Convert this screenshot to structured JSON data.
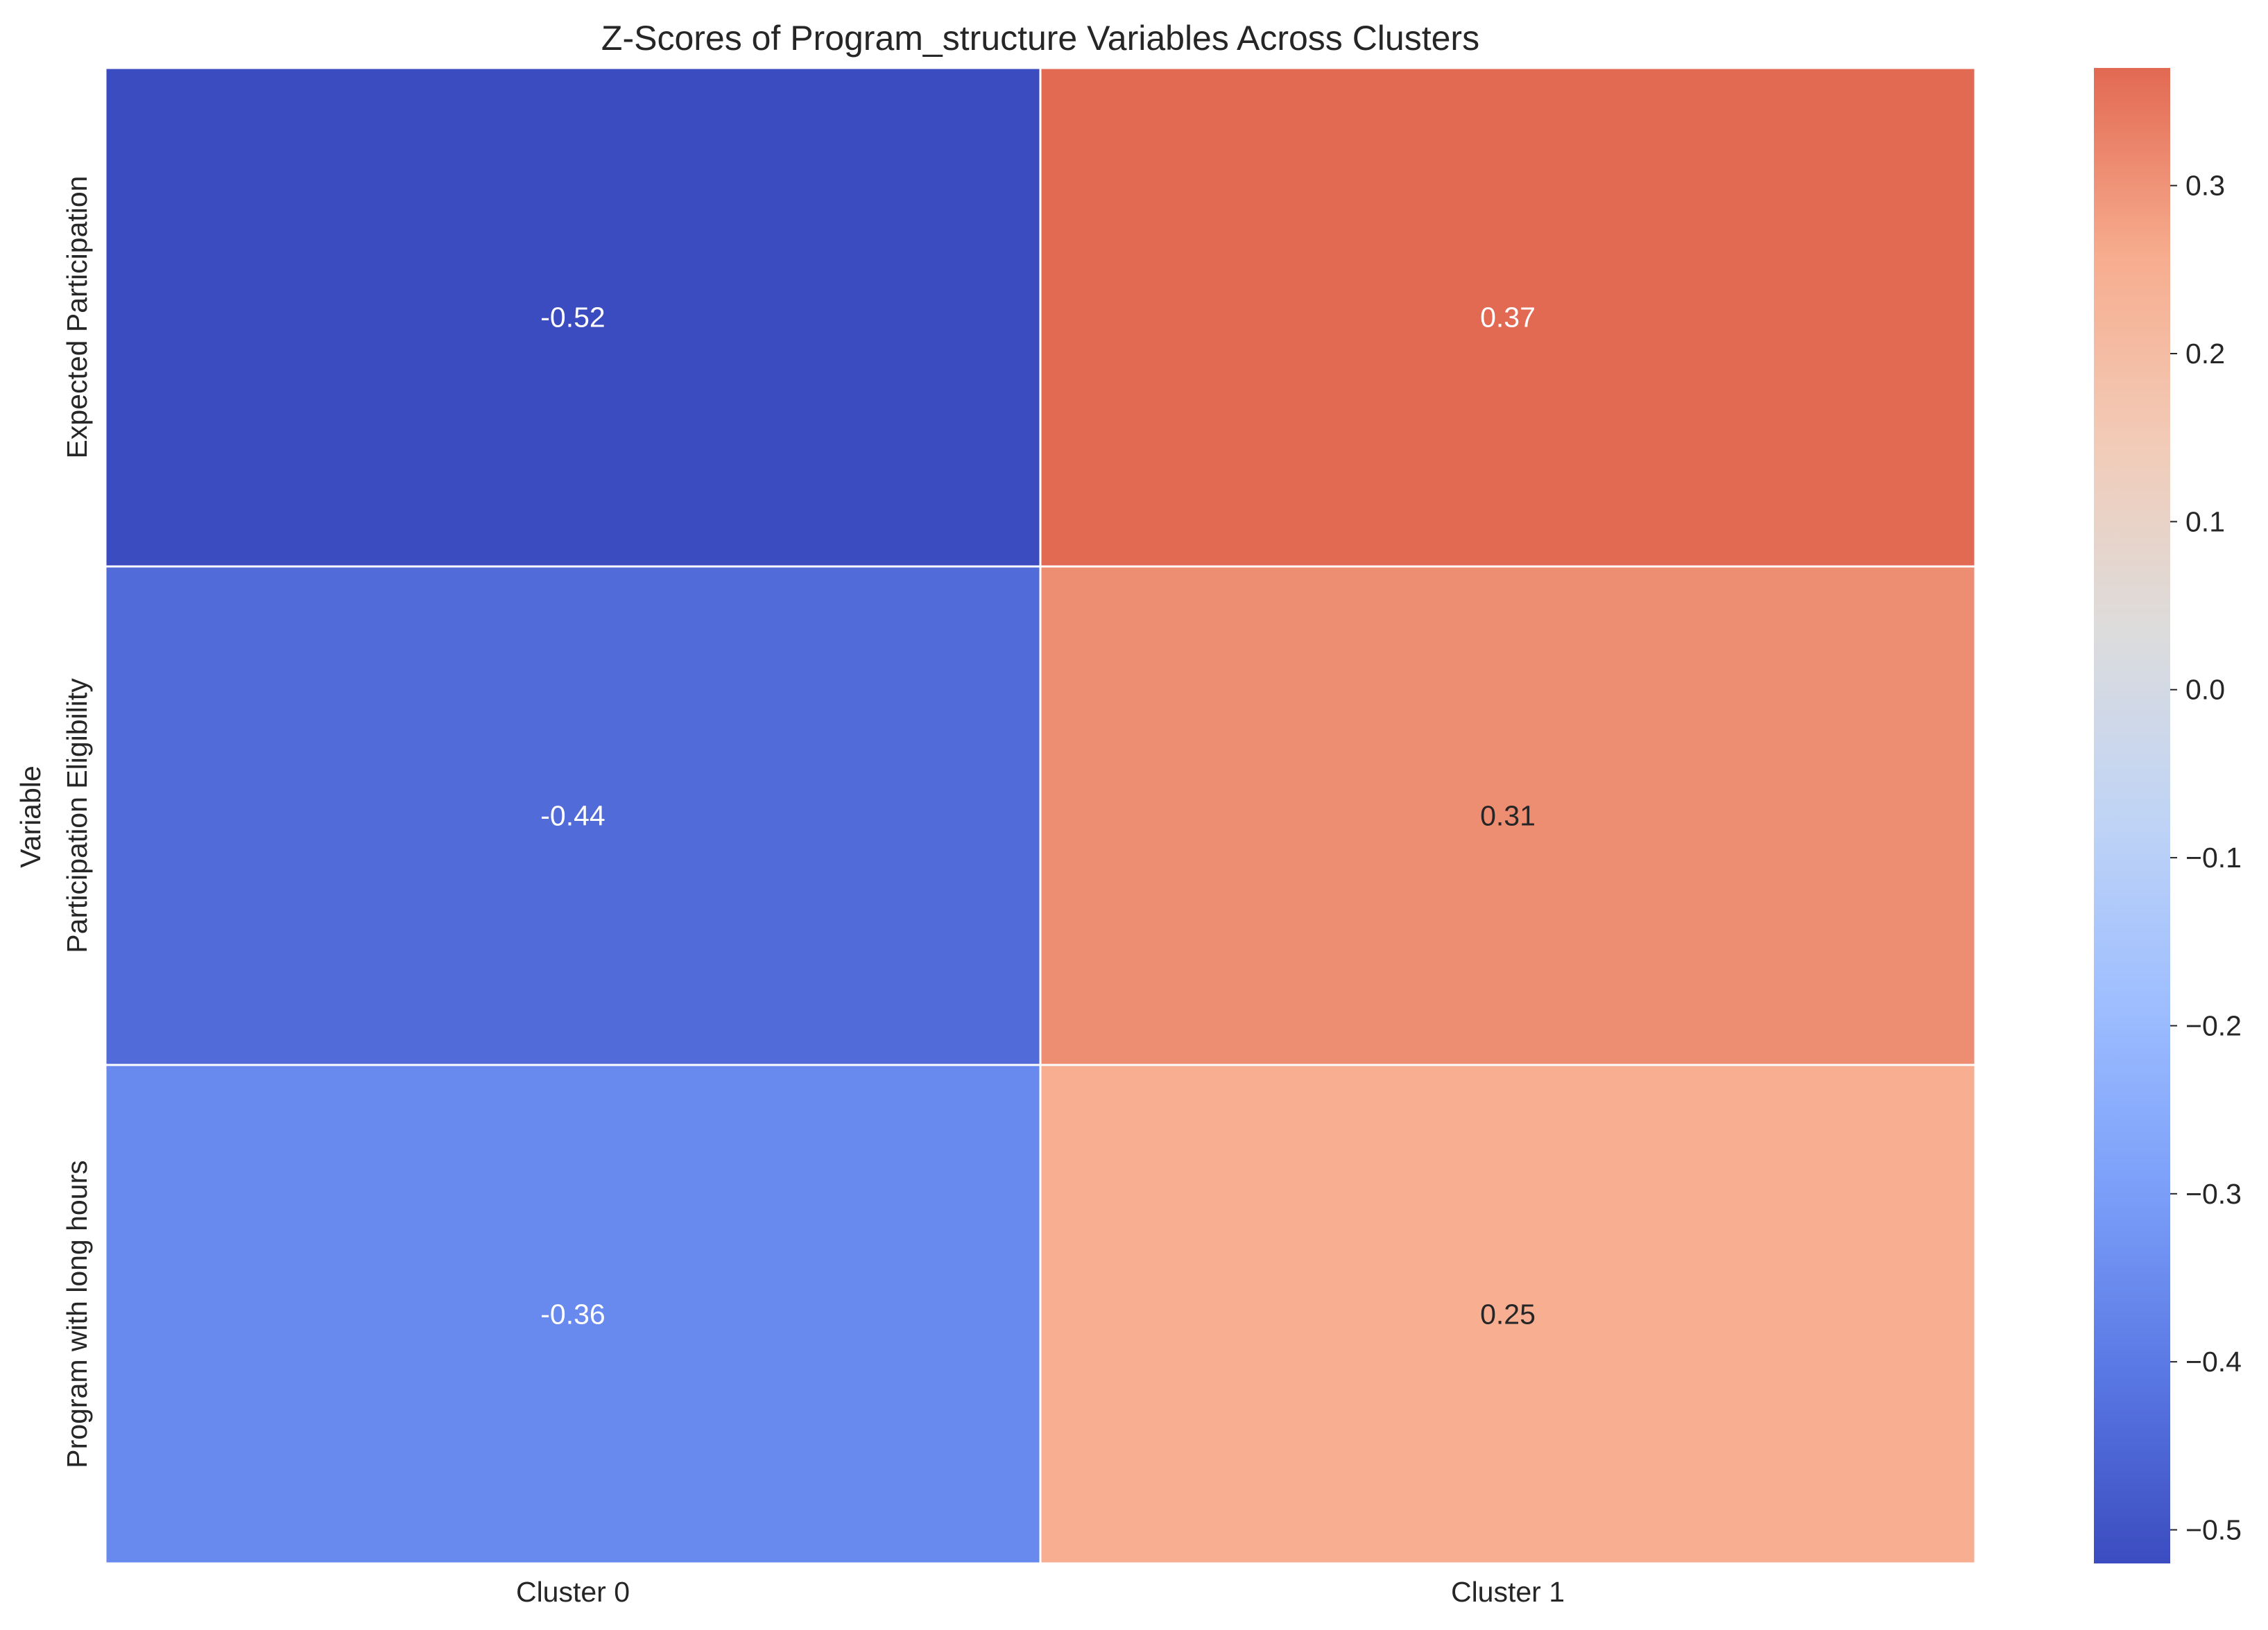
{
  "chart_data": {
    "type": "heatmap",
    "title": "Z-Scores of Program_structure Variables Across Clusters",
    "ylabel": "Variable",
    "xlabel": "",
    "x_categories": [
      "Cluster 0",
      "Cluster 1"
    ],
    "y_categories": [
      "Expected Participation",
      "Participation Eligibility",
      "Program with long hours"
    ],
    "values": [
      [
        -0.52,
        0.37
      ],
      [
        -0.44,
        0.31
      ],
      [
        -0.36,
        0.25
      ]
    ],
    "value_labels": [
      [
        "-0.52",
        "0.37"
      ],
      [
        "-0.44",
        "0.31"
      ],
      [
        "-0.36",
        "0.25"
      ]
    ],
    "colormap": "coolwarm",
    "color_range": [
      -0.52,
      0.37
    ],
    "colorbar_ticks": [
      0.3,
      0.2,
      0.1,
      0.0,
      -0.1,
      -0.2,
      -0.3,
      -0.4,
      -0.5
    ],
    "colorbar_tick_labels": [
      "0.3",
      "0.2",
      "0.1",
      "0.0",
      "−0.1",
      "−0.2",
      "−0.3",
      "−0.4",
      "−0.5"
    ]
  }
}
